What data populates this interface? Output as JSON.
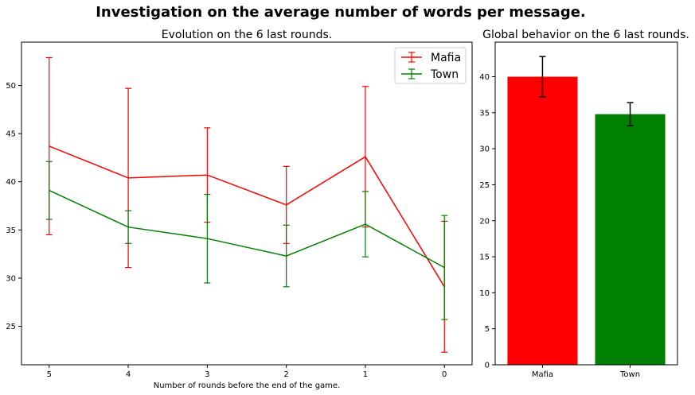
{
  "figure_title": "Investigation on the average number of words per message.",
  "chart_data": [
    {
      "type": "line",
      "title": "Evolution on the 6 last rounds.",
      "xlabel": "Number of rounds before the end of the game.",
      "ylabel": "",
      "x": [
        5,
        4,
        3,
        2,
        1,
        0
      ],
      "x_tick_labels": [
        "5",
        "4",
        "3",
        "2",
        "1",
        "0"
      ],
      "xlim": [
        5.35,
        -0.35
      ],
      "ylim": [
        21,
        54.5
      ],
      "y_ticks": [
        25,
        30,
        35,
        40,
        45,
        50
      ],
      "grid": false,
      "legend_position": "top-right",
      "series": [
        {
          "name": "Mafia",
          "color": "#ff0000",
          "values": [
            43.7,
            40.4,
            40.7,
            37.6,
            42.6,
            29.1
          ],
          "error": [
            9.2,
            9.3,
            4.9,
            4.0,
            7.3,
            6.8
          ]
        },
        {
          "name": "Town",
          "color": "#008000",
          "values": [
            39.1,
            35.3,
            34.1,
            32.3,
            35.6,
            31.1
          ],
          "error": [
            3.0,
            1.7,
            4.6,
            3.2,
            3.4,
            5.4
          ]
        }
      ]
    },
    {
      "type": "bar",
      "title": "Global behavior on the 6 last rounds.",
      "categories": [
        "Mafia",
        "Town"
      ],
      "values": [
        40.0,
        34.8
      ],
      "errors": [
        2.8,
        1.6
      ],
      "colors": [
        "#ff0000",
        "#008000"
      ],
      "xlabel": "",
      "ylabel": "",
      "ylim": [
        0,
        44.8
      ],
      "y_ticks": [
        0,
        5,
        10,
        15,
        20,
        25,
        30,
        35,
        40
      ],
      "grid": false
    }
  ]
}
